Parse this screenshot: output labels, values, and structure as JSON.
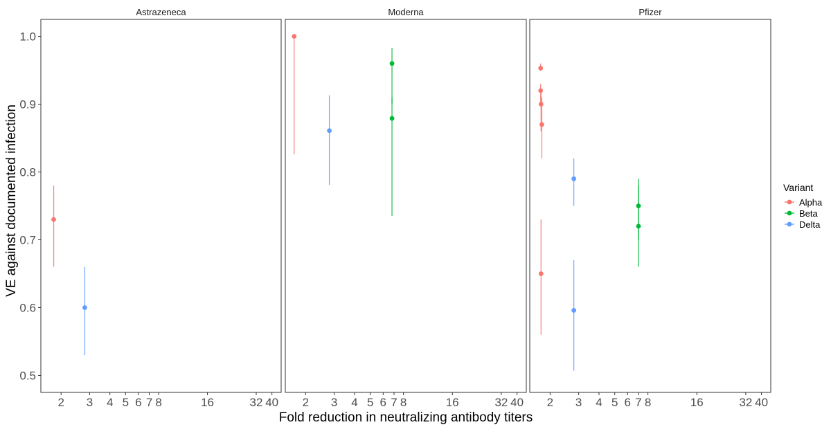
{
  "chart_data": {
    "type": "scatter",
    "ylabel": "VE against documented infection",
    "xlabel": "Fold reduction in neutralizing antibody titers",
    "x_scale": "log",
    "ylim": [
      0.475,
      1.025
    ],
    "y_ticks": [
      0.5,
      0.6,
      0.7,
      0.8,
      0.9,
      1.0
    ],
    "y_tick_labels": [
      "0.5",
      "0.6",
      "0.7",
      "0.8",
      "0.9",
      "1.0"
    ],
    "x_ticks": [
      2,
      3,
      4,
      5,
      6,
      7,
      8,
      16,
      32,
      40
    ],
    "x_tick_labels": [
      "2",
      "3",
      "4",
      "5",
      "6",
      "7",
      "8",
      "16",
      "32",
      "40"
    ],
    "grid": false,
    "legend": {
      "title": "Variant",
      "position": "right",
      "items": [
        {
          "name": "Alpha",
          "color": "#F8766D"
        },
        {
          "name": "Beta",
          "color": "#00BA38"
        },
        {
          "name": "Delta",
          "color": "#619CFF"
        }
      ]
    },
    "panels": [
      {
        "title": "Astrazeneca",
        "points": [
          {
            "variant": "Alpha",
            "x": 1.8,
            "y": 0.73,
            "ymin": 0.66,
            "ymax": 0.78
          },
          {
            "variant": "Delta",
            "x": 2.8,
            "y": 0.6,
            "ymin": 0.53,
            "ymax": 0.66
          }
        ]
      },
      {
        "title": "Moderna",
        "points": [
          {
            "variant": "Alpha",
            "x": 1.7,
            "y": 1.0,
            "ymin": 0.826,
            "ymax": 1.0
          },
          {
            "variant": "Delta",
            "x": 2.8,
            "y": 0.861,
            "ymin": 0.781,
            "ymax": 0.913
          },
          {
            "variant": "Beta",
            "x": 6.8,
            "y": 0.96,
            "ymin": 0.9,
            "ymax": 0.983
          },
          {
            "variant": "Beta",
            "x": 6.8,
            "y": 0.879,
            "ymin": 0.735,
            "ymax": 0.91
          }
        ]
      },
      {
        "title": "Pfizer",
        "points": [
          {
            "variant": "Alpha",
            "x": 1.75,
            "y": 0.953,
            "ymin": 0.95,
            "ymax": 0.96
          },
          {
            "variant": "Alpha",
            "x": 1.75,
            "y": 0.92,
            "ymin": 0.9,
            "ymax": 0.93
          },
          {
            "variant": "Alpha",
            "x": 1.76,
            "y": 0.9,
            "ymin": 0.86,
            "ymax": 0.92
          },
          {
            "variant": "Alpha",
            "x": 1.78,
            "y": 0.87,
            "ymin": 0.82,
            "ymax": 0.91
          },
          {
            "variant": "Alpha",
            "x": 1.76,
            "y": 0.65,
            "ymin": 0.56,
            "ymax": 0.73
          },
          {
            "variant": "Delta",
            "x": 2.8,
            "y": 0.79,
            "ymin": 0.75,
            "ymax": 0.82
          },
          {
            "variant": "Delta",
            "x": 2.8,
            "y": 0.596,
            "ymin": 0.507,
            "ymax": 0.67
          },
          {
            "variant": "Beta",
            "x": 7.0,
            "y": 0.75,
            "ymin": 0.7,
            "ymax": 0.79
          },
          {
            "variant": "Beta",
            "x": 7.0,
            "y": 0.72,
            "ymin": 0.66,
            "ymax": 0.78
          }
        ]
      }
    ]
  }
}
